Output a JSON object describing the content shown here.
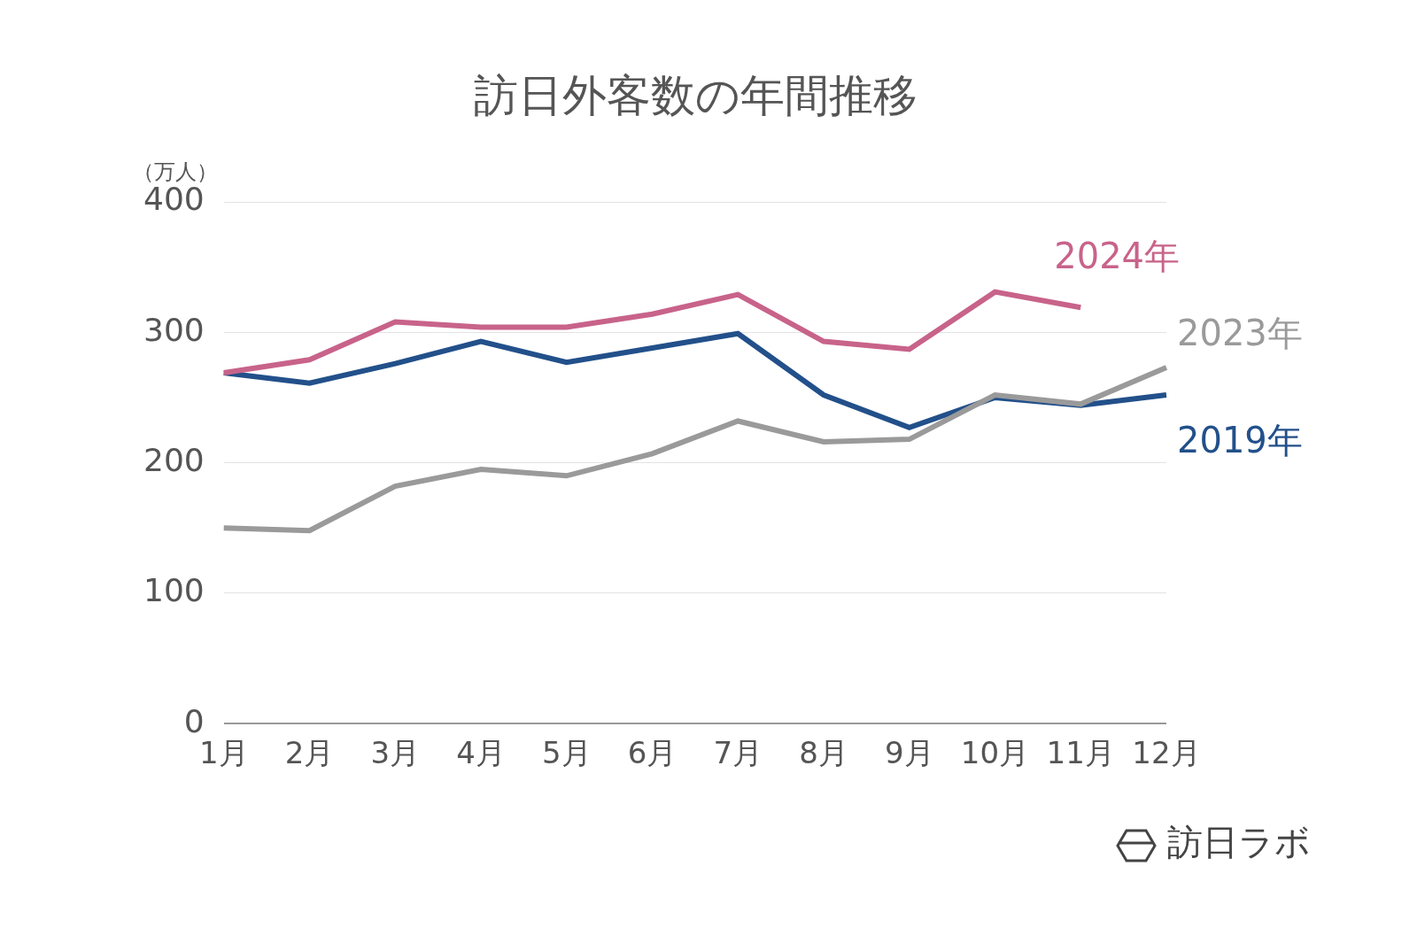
{
  "chart_data": {
    "type": "line",
    "title": "訪日外客数の年間推移",
    "y_label": "（万人）",
    "source": "訪日ラボ",
    "categories": [
      "1月",
      "2月",
      "3月",
      "4月",
      "5月",
      "6月",
      "7月",
      "8月",
      "9月",
      "10月",
      "11月",
      "12月"
    ],
    "series": [
      {
        "name": "2024年",
        "color": "#c8638a",
        "values": [
          269,
          279,
          308,
          304,
          304,
          314,
          329,
          293,
          287,
          331,
          319,
          null
        ]
      },
      {
        "name": "2023年",
        "color": "#9a9a9a",
        "values": [
          150,
          148,
          182,
          195,
          190,
          207,
          232,
          216,
          218,
          252,
          245,
          273
        ]
      },
      {
        "name": "2019年",
        "color": "#22508a",
        "values": [
          269,
          261,
          276,
          293,
          277,
          288,
          299,
          252,
          227,
          250,
          244,
          252
        ]
      }
    ],
    "ylim": [
      0,
      400
    ],
    "yticks": [
      0,
      100,
      200,
      300,
      400
    ],
    "grid": true
  }
}
